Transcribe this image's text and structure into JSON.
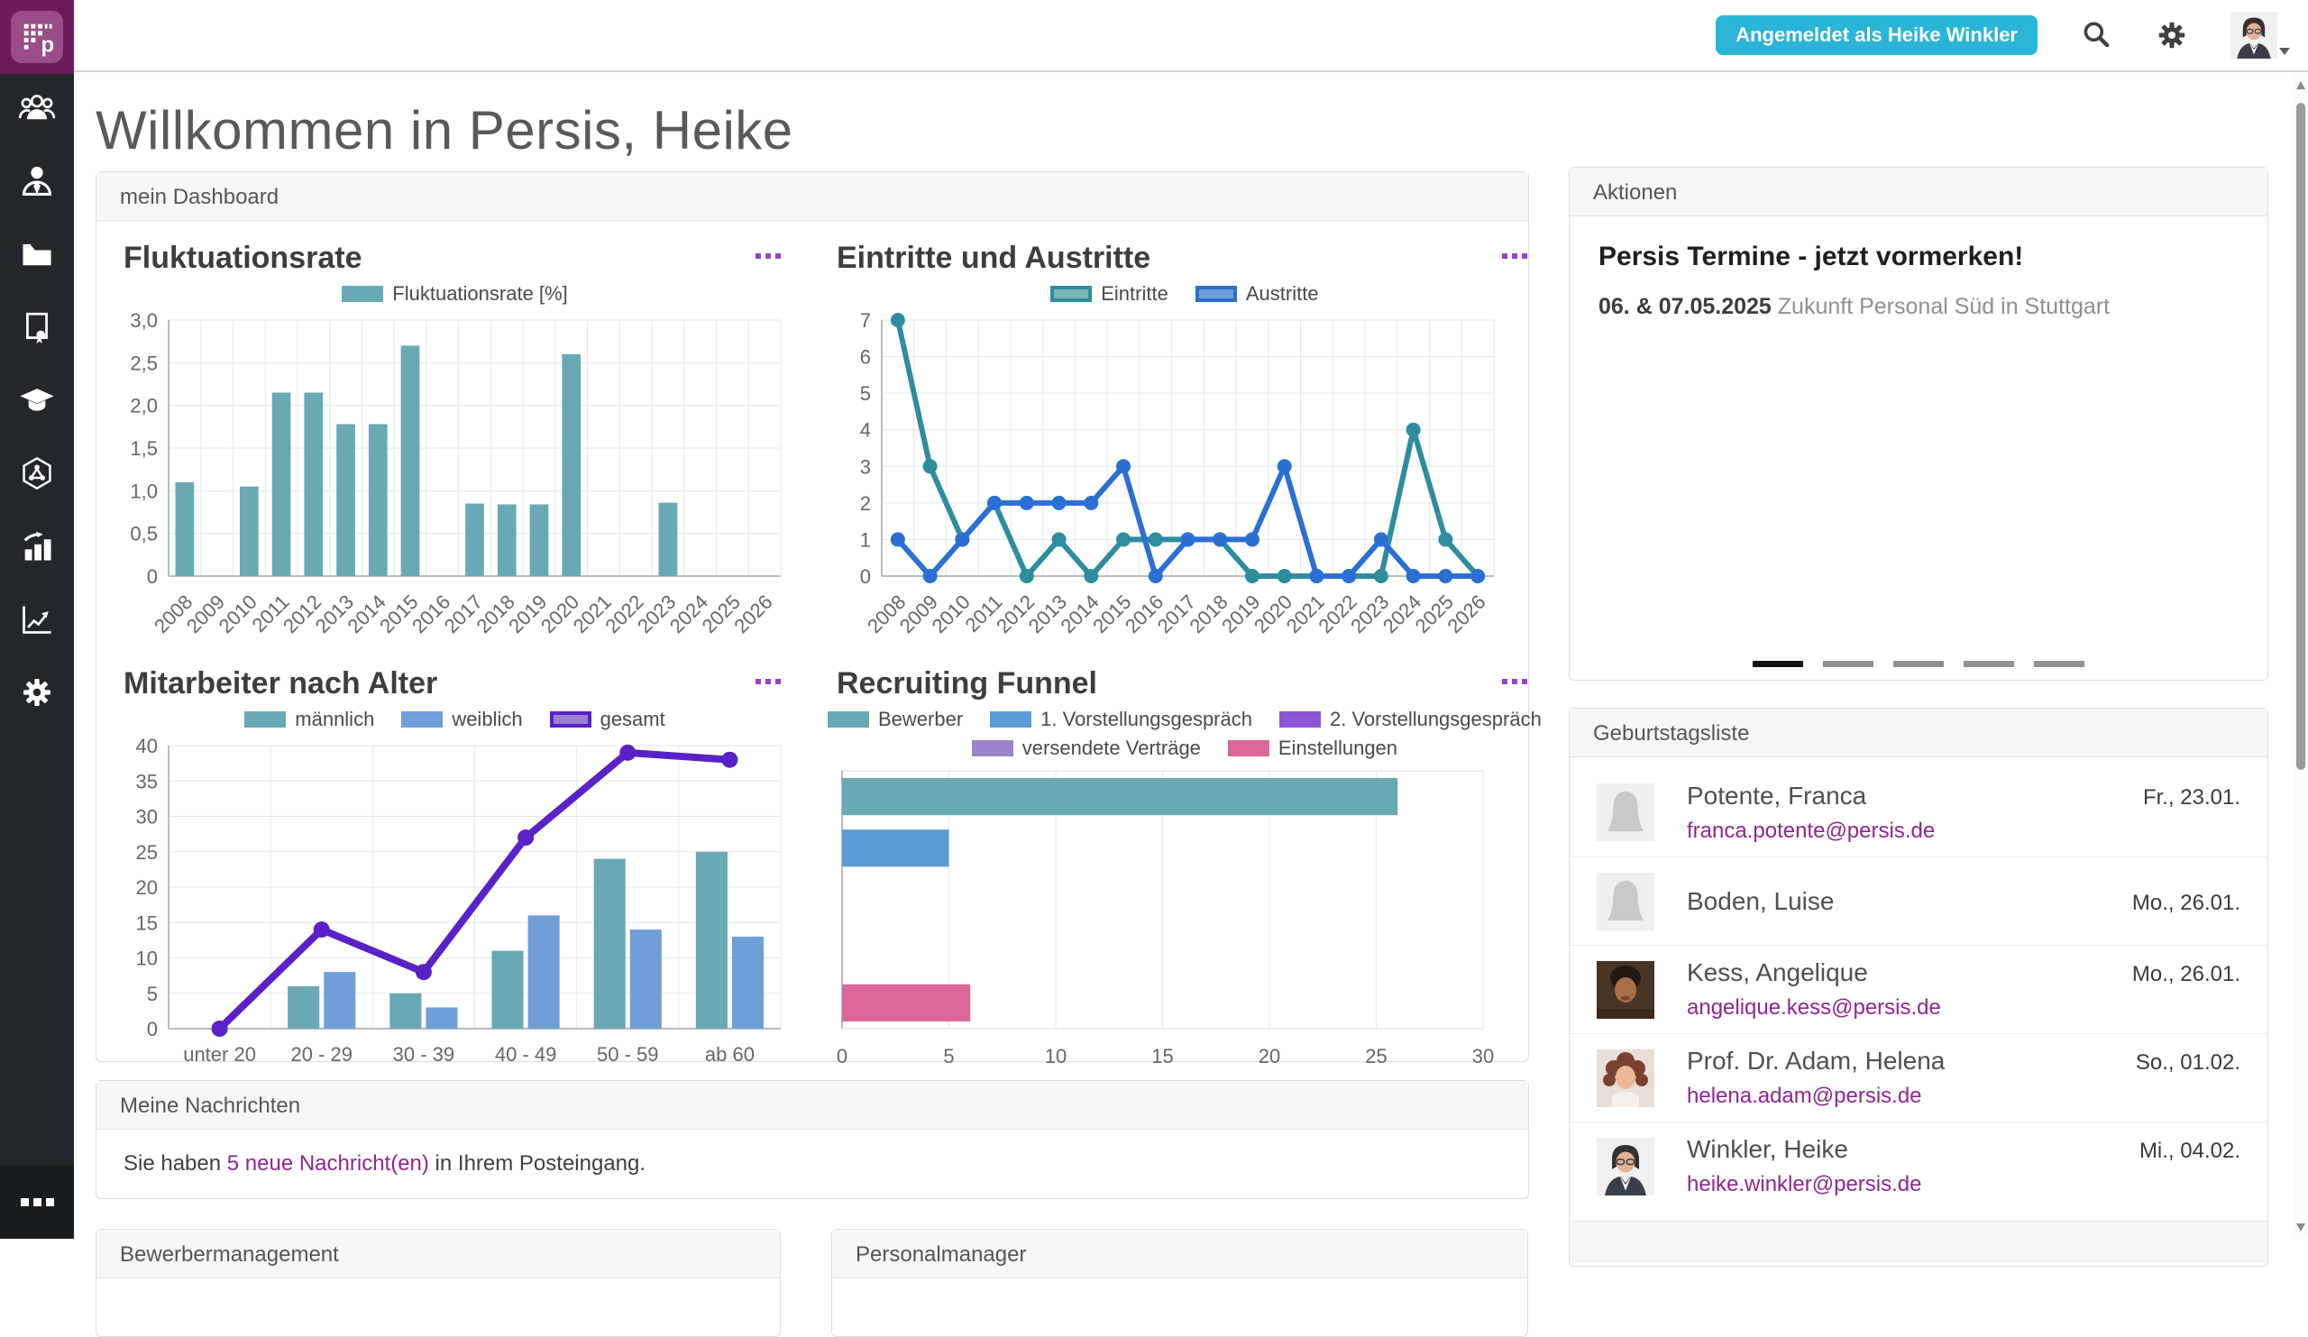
{
  "topbar": {
    "badge": "Angemeldet als Heike Winkler",
    "icons": [
      "search-icon",
      "settings-gear-icon",
      "user-avatar"
    ]
  },
  "page": {
    "title": "Willkommen in Persis, Heike"
  },
  "sidebar": {
    "icons": [
      "persis-logo",
      "team-icon",
      "employee-icon",
      "folder-icon",
      "certificate-icon",
      "education-icon",
      "workflow-icon",
      "statistics-icon",
      "report-chart-icon",
      "settings-icon",
      "more-icon"
    ]
  },
  "dashboard": {
    "header": "mein Dashboard"
  },
  "chart_data": [
    {
      "type": "bar",
      "title": "Fluktuationsrate",
      "categories": [
        "2008",
        "2009",
        "2010",
        "2011",
        "2012",
        "2013",
        "2014",
        "2015",
        "2016",
        "2017",
        "2018",
        "2019",
        "2020",
        "2021",
        "2022",
        "2023",
        "2024",
        "2025",
        "2026"
      ],
      "series": [
        {
          "name": "Fluktuationsrate [%]",
          "color": "#68a9b5",
          "values": [
            1.1,
            0,
            1.05,
            2.15,
            2.15,
            1.78,
            1.78,
            2.7,
            0,
            0.85,
            0.84,
            0.84,
            2.6,
            0,
            0,
            0.86,
            0,
            0,
            0
          ]
        }
      ],
      "ylim": [
        0,
        3
      ],
      "y_ticks": [
        {
          "v": 0,
          "label": "0"
        },
        {
          "v": 0.5,
          "label": "0,5"
        },
        {
          "v": 1,
          "label": "1,0"
        },
        {
          "v": 1.5,
          "label": "1,5"
        },
        {
          "v": 2,
          "label": "2,0"
        },
        {
          "v": 2.5,
          "label": "2,5"
        },
        {
          "v": 3,
          "label": "3,0"
        }
      ],
      "x_label_rotate": true,
      "grid": true,
      "legend_position": "top"
    },
    {
      "type": "line",
      "title": "Eintritte und Austritte",
      "categories": [
        "2008",
        "2009",
        "2010",
        "2011",
        "2012",
        "2013",
        "2014",
        "2015",
        "2016",
        "2017",
        "2018",
        "2019",
        "2020",
        "2021",
        "2022",
        "2023",
        "2024",
        "2025",
        "2026"
      ],
      "series": [
        {
          "name": "Eintritte",
          "color": "#2d8d9e",
          "fill": "#7fb3bc",
          "swatch_border": "#2d8d9e",
          "values": [
            7,
            3,
            1,
            2,
            0,
            1,
            0,
            1,
            1,
            1,
            1,
            0,
            0,
            0,
            0,
            0,
            4,
            1,
            0
          ]
        },
        {
          "name": "Austritte",
          "color": "#2b6fd3",
          "fill": "#6f9ed9",
          "swatch_border": "#2b6fd3",
          "values": [
            1,
            0,
            1,
            2,
            2,
            2,
            2,
            3,
            0,
            1,
            1,
            1,
            3,
            0,
            0,
            1,
            0,
            0,
            0
          ]
        }
      ],
      "ylim": [
        0,
        7
      ],
      "y_ticks": [
        {
          "v": 0,
          "label": "0"
        },
        {
          "v": 1,
          "label": "1"
        },
        {
          "v": 2,
          "label": "2"
        },
        {
          "v": 3,
          "label": "3"
        },
        {
          "v": 4,
          "label": "4"
        },
        {
          "v": 5,
          "label": "5"
        },
        {
          "v": 6,
          "label": "6"
        },
        {
          "v": 7,
          "label": "7"
        }
      ],
      "x_label_rotate": true,
      "grid": true,
      "legend_position": "top"
    },
    {
      "type": "combo",
      "title": "Mitarbeiter nach Alter",
      "categories": [
        "unter 20",
        "20 - 29",
        "30 - 39",
        "40 - 49",
        "50 - 59",
        "ab 60"
      ],
      "bar_series": [
        {
          "name": "männlich",
          "color": "#68a9b5",
          "values": [
            0,
            6,
            5,
            11,
            24,
            25
          ]
        },
        {
          "name": "weiblich",
          "color": "#6f9ed9",
          "values": [
            0,
            8,
            3,
            16,
            14,
            13
          ]
        }
      ],
      "line_series": [
        {
          "name": "gesamt",
          "color": "#5b21c8",
          "fill": "#9b80d2",
          "swatch_border": "#5b21c8",
          "width": 8,
          "marker": 9,
          "values": [
            0,
            14,
            8,
            27,
            39,
            38
          ]
        }
      ],
      "ylim": [
        0,
        40
      ],
      "y_ticks": [
        {
          "v": 0,
          "label": "0"
        },
        {
          "v": 5,
          "label": "5"
        },
        {
          "v": 10,
          "label": "10"
        },
        {
          "v": 15,
          "label": "15"
        },
        {
          "v": 20,
          "label": "20"
        },
        {
          "v": 25,
          "label": "25"
        },
        {
          "v": 30,
          "label": "30"
        },
        {
          "v": 35,
          "label": "35"
        },
        {
          "v": 40,
          "label": "40"
        }
      ],
      "x_label_rotate": false,
      "grid": true,
      "legend_position": "top"
    },
    {
      "type": "hbar",
      "title": "Recruiting Funnel",
      "series": [
        {
          "name": "Bewerber",
          "color": "#68a9b5",
          "value": 26
        },
        {
          "name": "1. Vorstellungsgespräch",
          "color": "#5b9bd5",
          "value": 5
        },
        {
          "name": "2. Vorstellungsgespräch",
          "color": "#8b55d6",
          "value": 0
        },
        {
          "name": "versendete Verträge",
          "color": "#9b84cb",
          "value": 0
        },
        {
          "name": "Einstellungen",
          "color": "#dc6697",
          "value": 6
        }
      ],
      "xlim": [
        0,
        30
      ],
      "x_ticks": [
        0,
        5,
        10,
        15,
        20,
        25,
        30
      ],
      "legend_rows": [
        [
          0,
          1,
          2
        ],
        [
          3,
          4
        ]
      ],
      "grid": true,
      "legend_position": "top"
    }
  ],
  "aktionen": {
    "header": "Aktionen",
    "title": "Persis Termine - jetzt vormerken!",
    "date": "06. & 07.05.2025",
    "event": "Zukunft Personal Süd in Stuttgart",
    "carousel_total": 5,
    "carousel_active": 0
  },
  "birthdays": {
    "header": "Geburtstagsliste",
    "items": [
      {
        "name": "Potente, Franca",
        "email": "franca.potente@persis.de",
        "date": "Fr., 23.01.",
        "avatar": "placeholder"
      },
      {
        "name": "Boden, Luise",
        "email": "",
        "date": "Mo., 26.01.",
        "avatar": "placeholder"
      },
      {
        "name": "Kess, Angelique",
        "email": "angelique.kess@persis.de",
        "date": "Mo., 26.01.",
        "avatar": "kess"
      },
      {
        "name": "Prof. Dr. Adam, Helena",
        "email": "helena.adam@persis.de",
        "date": "So., 01.02.",
        "avatar": "adam"
      },
      {
        "name": "Winkler, Heike",
        "email": "heike.winkler@persis.de",
        "date": "Mi., 04.02.",
        "avatar": "winkler"
      }
    ]
  },
  "messages": {
    "header": "Meine Nachrichten",
    "prefix": "Sie haben ",
    "link": "5 neue Nachricht(en)",
    "suffix": " in Ihrem Posteingang."
  },
  "bottom_panels": [
    {
      "header": "Bewerbermanagement"
    },
    {
      "header": "Personalmanager"
    }
  ],
  "colors": {
    "brand_purple": "#6c1b5e",
    "badge_cyan": "#2ab5d8",
    "link_purple": "#8e2790",
    "menu_dots": "#9643c8",
    "teal": "#68a9b5",
    "blue": "#5b9bd5",
    "violet": "#5b21c8",
    "pink": "#dc6697"
  }
}
